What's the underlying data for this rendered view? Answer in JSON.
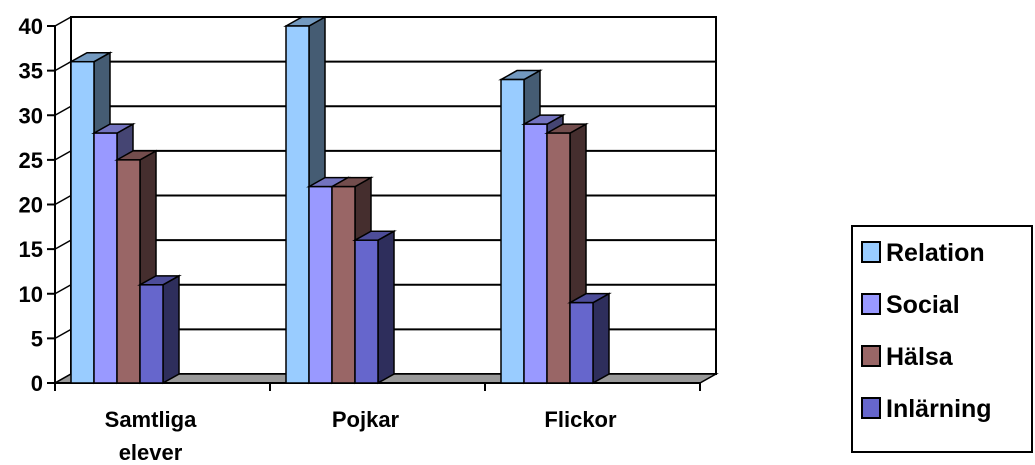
{
  "chart_data": {
    "type": "bar",
    "categories": [
      "Samtliga elever",
      "Pojkar",
      "Flickor"
    ],
    "category_lines": [
      [
        "Samtliga",
        "elever"
      ],
      [
        "Pojkar"
      ],
      [
        "Flickor"
      ]
    ],
    "series": [
      {
        "name": "Relation",
        "values": [
          36,
          40,
          34
        ],
        "color": "#99CCFF"
      },
      {
        "name": "Social",
        "values": [
          28,
          22,
          29
        ],
        "color": "#9999FF"
      },
      {
        "name": "Hälsa",
        "values": [
          25,
          22,
          28
        ],
        "color": "#996666"
      },
      {
        "name": "Inlärning",
        "values": [
          11,
          16,
          9
        ],
        "color": "#6666CC"
      }
    ],
    "yticks": [
      "0",
      "5",
      "10",
      "15",
      "20",
      "25",
      "30",
      "35",
      "40"
    ],
    "ylim": [
      0,
      40
    ],
    "grid": true,
    "legend": "right",
    "title": "",
    "xlabel": "",
    "ylabel": ""
  }
}
